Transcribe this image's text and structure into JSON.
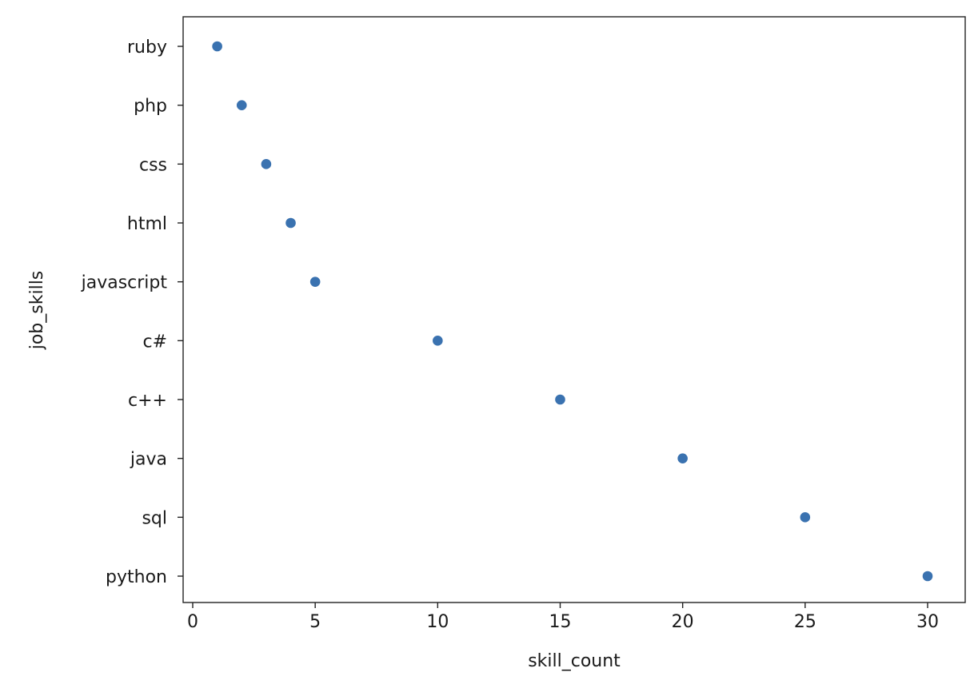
{
  "chart_data": {
    "type": "scatter",
    "title": "",
    "xlabel": "skill_count",
    "ylabel": "job_skills",
    "xlim": [
      -0.6,
      30.6
    ],
    "xticks": [
      0,
      5,
      10,
      15,
      20,
      25,
      30
    ],
    "categories": [
      "ruby",
      "php",
      "css",
      "html",
      "javascript",
      "c#",
      "c++",
      "java",
      "sql",
      "python"
    ],
    "points": [
      {
        "category": "ruby",
        "x": 1
      },
      {
        "category": "php",
        "x": 2
      },
      {
        "category": "css",
        "x": 3
      },
      {
        "category": "html",
        "x": 4
      },
      {
        "category": "javascript",
        "x": 5
      },
      {
        "category": "c#",
        "x": 10
      },
      {
        "category": "c++",
        "x": 15
      },
      {
        "category": "java",
        "x": 20
      },
      {
        "category": "sql",
        "x": 25
      },
      {
        "category": "python",
        "x": 30
      }
    ],
    "marker_color": "#3a72b0",
    "grid": false,
    "legend": "none"
  }
}
